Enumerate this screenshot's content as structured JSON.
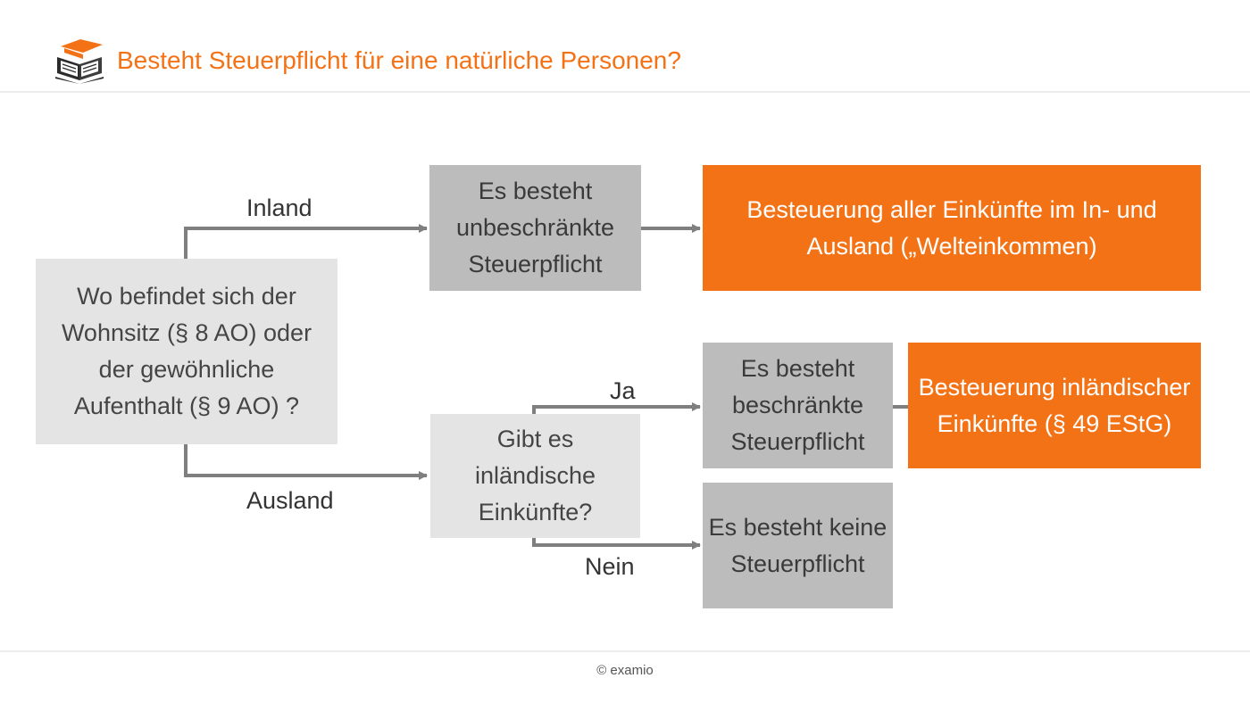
{
  "header": {
    "title": "Besteht Steuerpflicht für eine natürliche Personen?",
    "logo_icon": "graduation-cap-book-icon",
    "accent_color": "#f47216"
  },
  "diagram": {
    "nodes": {
      "question_residence": "Wo befindet sich der Wohnsitz (§ 8 AO) oder der gewöhnliche Aufenthalt (§ 9 AO) ?",
      "unlimited_liability": "Es besteht unbeschränkte Steuerpflicht",
      "worldwide_income": "Besteuerung aller Einkünfte im In- und Ausland („Welteinkommen)",
      "question_domestic_income": "Gibt es inländische Einkünfte?",
      "limited_liability": "Es besteht beschränkte Steuerpflicht",
      "domestic_income_tax": "Besteuerung inländischer Einkünfte (§ 49 EStG)",
      "no_liability": "Es besteht keine Steuerpflicht"
    },
    "edges": {
      "inland": "Inland",
      "ausland": "Ausland",
      "ja": "Ja",
      "nein": "Nein"
    },
    "colors": {
      "orange": "#f47216",
      "gray_dark": "#bcbcbc",
      "gray_light": "#e4e4e4",
      "connector": "#7f7f7f"
    }
  },
  "footer": {
    "copyright": "© examio"
  }
}
